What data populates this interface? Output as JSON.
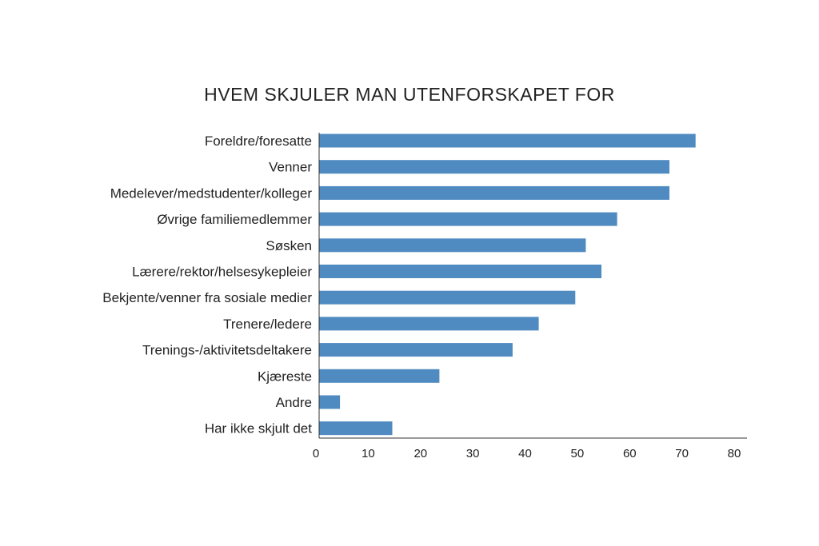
{
  "chart_data": {
    "type": "bar",
    "orientation": "horizontal",
    "title": "HVEM SKJULER MAN UTENFORSKAPET FOR",
    "xlabel": "",
    "ylabel": "",
    "categories": [
      "Foreldre/foresatte",
      "Venner",
      "Medelever/medstudenter/kolleger",
      "Øvrige familiemedlemmer",
      "Søsken",
      "Lærere/rektor/helsesykepleier",
      "Bekjente/venner fra sosiale medier",
      "Trenere/ledere",
      "Trenings-/aktivitetsdeltakere",
      "Kjæreste",
      "Andre",
      "Har ikke skjult det"
    ],
    "values": [
      72,
      67,
      67,
      57,
      51,
      54,
      49,
      42,
      37,
      23,
      4,
      14
    ],
    "xlim": [
      0,
      80
    ],
    "xticks": [
      "0",
      "10",
      "20",
      "30",
      "40",
      "50",
      "60",
      "70",
      "80"
    ],
    "grid": false,
    "legend": "none",
    "bar_color": "#4f8bc0"
  }
}
